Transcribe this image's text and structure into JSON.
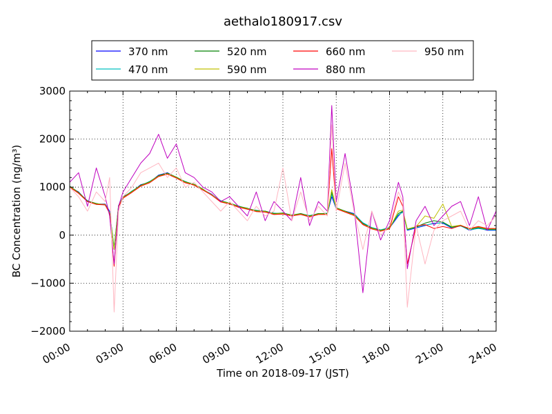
{
  "chart_data": {
    "type": "line",
    "title": "aethalo180917.csv",
    "xlabel": "Time on 2018-09-17 (JST)",
    "ylabel": "BC Concentration (ng/m³)",
    "xlim_hours": [
      0,
      24
    ],
    "ylim": [
      -2000,
      3000
    ],
    "x_ticks": [
      "00:00",
      "03:00",
      "06:00",
      "09:00",
      "12:00",
      "15:00",
      "18:00",
      "21:00",
      "24:00"
    ],
    "y_ticks": [
      "−2000",
      "−1000",
      "0",
      "1000",
      "2000",
      "3000"
    ],
    "grid": true,
    "legend_position": "top-center",
    "x_hours": [
      0.0,
      0.5,
      1.0,
      1.5,
      2.0,
      2.25,
      2.5,
      2.75,
      3.0,
      3.5,
      4.0,
      4.5,
      5.0,
      5.5,
      6.0,
      6.5,
      7.0,
      7.5,
      8.0,
      8.5,
      9.0,
      9.5,
      10.0,
      10.5,
      11.0,
      11.5,
      12.0,
      12.5,
      13.0,
      13.5,
      14.0,
      14.5,
      14.75,
      15.0,
      15.5,
      16.0,
      16.5,
      17.0,
      17.5,
      18.0,
      18.5,
      18.75,
      19.0,
      19.5,
      20.0,
      20.5,
      21.0,
      21.5,
      22.0,
      22.5,
      23.0,
      23.5,
      24.0
    ],
    "series": [
      {
        "name": "370 nm",
        "color": "#0000ff",
        "values": [
          1000,
          900,
          700,
          650,
          650,
          500,
          -300,
          600,
          800,
          900,
          1050,
          1100,
          1250,
          1300,
          1200,
          1100,
          1050,
          950,
          850,
          700,
          650,
          600,
          550,
          500,
          500,
          450,
          450,
          400,
          450,
          400,
          450,
          450,
          800,
          550,
          500,
          450,
          250,
          150,
          100,
          150,
          400,
          500,
          100,
          150,
          200,
          250,
          250,
          150,
          200,
          100,
          150,
          100,
          100
        ]
      },
      {
        "name": "470 nm",
        "color": "#00bfbf",
        "values": [
          1000,
          880,
          720,
          640,
          640,
          480,
          -250,
          620,
          780,
          920,
          1030,
          1120,
          1230,
          1280,
          1190,
          1120,
          1040,
          940,
          840,
          720,
          660,
          610,
          540,
          520,
          490,
          460,
          440,
          410,
          440,
          410,
          440,
          460,
          850,
          560,
          490,
          440,
          260,
          160,
          110,
          160,
          420,
          480,
          110,
          160,
          210,
          240,
          260,
          160,
          190,
          110,
          140,
          110,
          110
        ]
      },
      {
        "name": "520 nm",
        "color": "#008000",
        "values": [
          1020,
          890,
          710,
          660,
          630,
          470,
          -280,
          610,
          790,
          910,
          1040,
          1110,
          1240,
          1290,
          1210,
          1110,
          1060,
          960,
          830,
          710,
          670,
          600,
          560,
          510,
          500,
          450,
          460,
          420,
          450,
          400,
          450,
          450,
          900,
          570,
          500,
          430,
          240,
          150,
          100,
          150,
          450,
          500,
          120,
          170,
          250,
          300,
          270,
          170,
          200,
          120,
          160,
          120,
          120
        ]
      },
      {
        "name": "590 nm",
        "color": "#bfbf00",
        "values": [
          1010,
          880,
          700,
          650,
          640,
          460,
          -300,
          600,
          780,
          900,
          1030,
          1100,
          1230,
          1280,
          1200,
          1100,
          1050,
          950,
          840,
          700,
          660,
          590,
          550,
          500,
          490,
          440,
          450,
          410,
          440,
          390,
          440,
          440,
          950,
          560,
          490,
          420,
          230,
          140,
          90,
          140,
          500,
          520,
          130,
          180,
          400,
          350,
          650,
          180,
          210,
          130,
          170,
          130,
          130
        ]
      },
      {
        "name": "660 nm",
        "color": "#ff0000",
        "values": [
          1000,
          870,
          700,
          640,
          630,
          450,
          -650,
          590,
          770,
          890,
          1020,
          1090,
          1220,
          1270,
          1190,
          1090,
          1040,
          940,
          830,
          690,
          650,
          580,
          540,
          490,
          480,
          430,
          440,
          400,
          430,
          380,
          430,
          430,
          1800,
          550,
          480,
          410,
          220,
          130,
          80,
          130,
          800,
          600,
          -600,
          190,
          220,
          140,
          180,
          140,
          200,
          140,
          180,
          140,
          140
        ]
      },
      {
        "name": "880 nm",
        "color": "#bf00bf",
        "values": [
          1100,
          1300,
          600,
          1400,
          800,
          400,
          -600,
          600,
          900,
          1200,
          1500,
          1700,
          2100,
          1600,
          1900,
          1300,
          1200,
          1000,
          900,
          700,
          800,
          600,
          400,
          900,
          300,
          700,
          500,
          300,
          1200,
          200,
          700,
          500,
          2700,
          700,
          1700,
          600,
          -1200,
          500,
          -100,
          300,
          1100,
          800,
          -700,
          300,
          600,
          200,
          400,
          600,
          700,
          200,
          800,
          100,
          500
        ]
      },
      {
        "name": "950 nm",
        "color": "#ffb6c1",
        "values": [
          1000,
          800,
          500,
          900,
          700,
          1200,
          -1600,
          500,
          800,
          1000,
          1300,
          1400,
          1500,
          1200,
          1400,
          1000,
          1100,
          900,
          700,
          500,
          700,
          500,
          300,
          600,
          400,
          500,
          1400,
          300,
          900,
          300,
          600,
          400,
          2300,
          500,
          1500,
          500,
          -300,
          500,
          0,
          200,
          900,
          700,
          -1500,
          200,
          -600,
          100,
          300,
          400,
          500,
          100,
          300,
          200,
          400
        ]
      }
    ]
  }
}
